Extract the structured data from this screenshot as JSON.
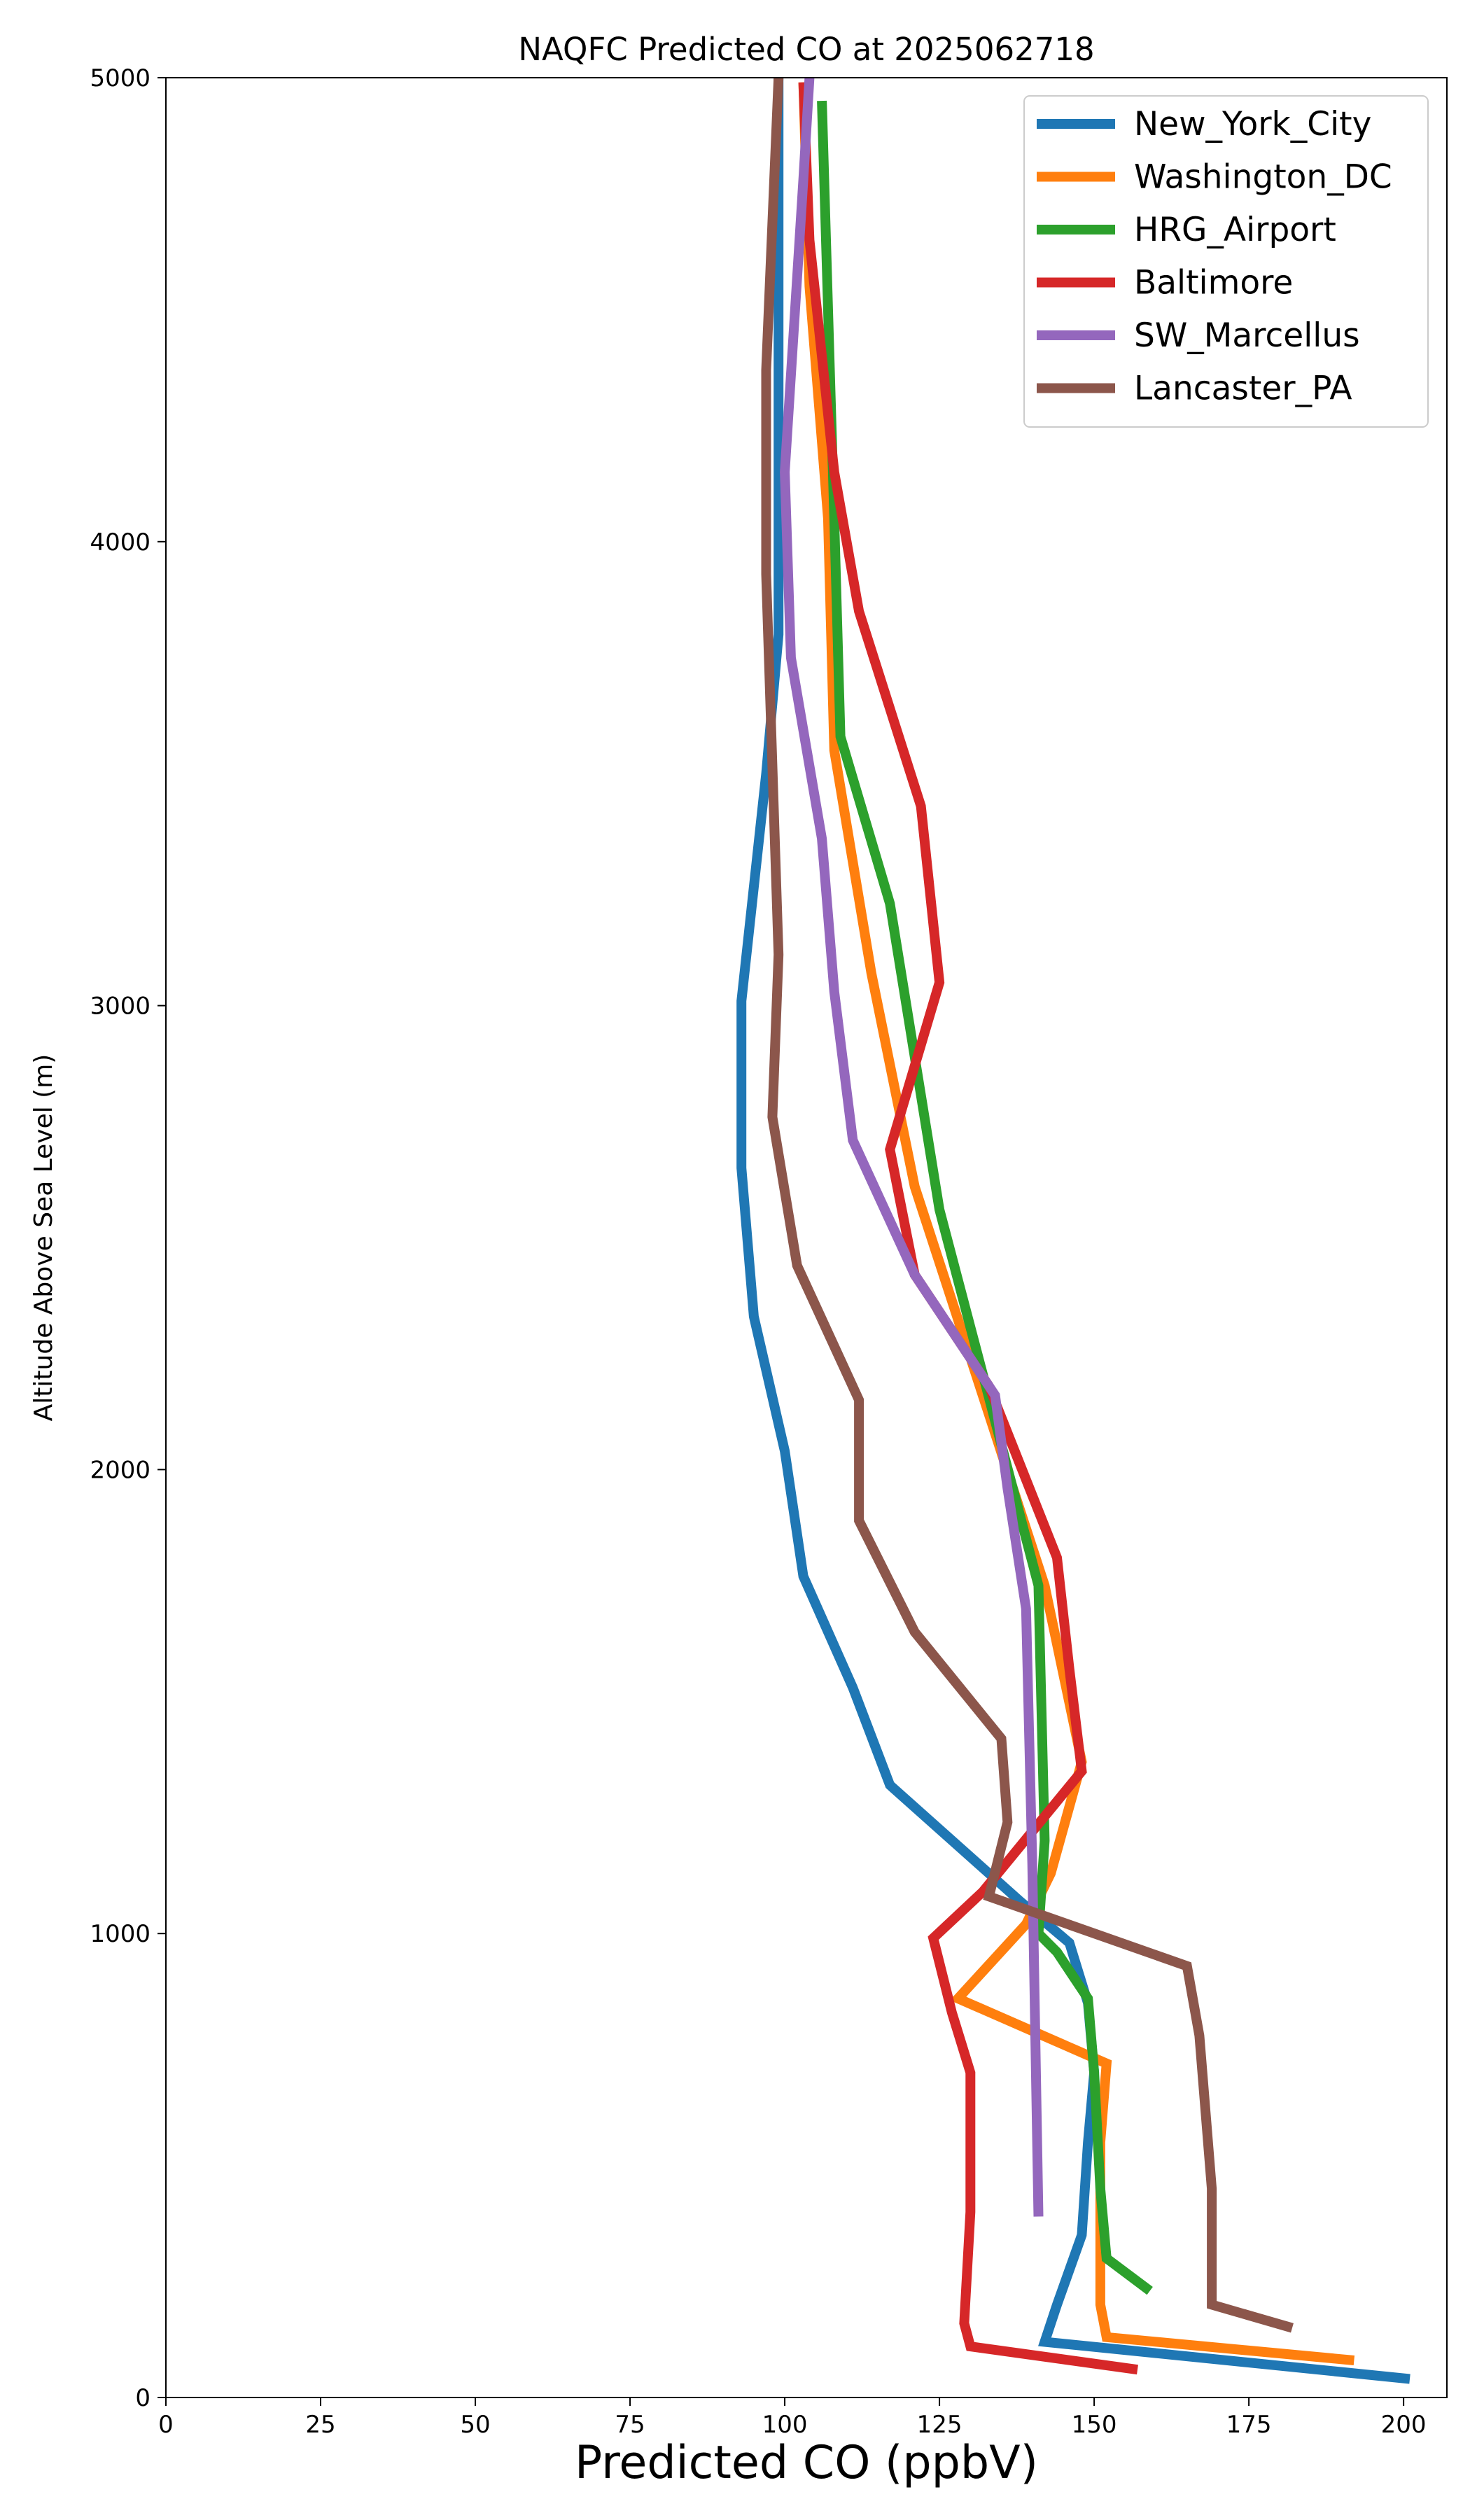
{
  "chart_data": {
    "type": "line",
    "title": "NAQFC Predicted CO at 2025062718",
    "xlabel": "Predicted CO (ppbV)",
    "ylabel": "Altitude Above Sea Level (m)",
    "xlim": [
      0,
      207
    ],
    "ylim": [
      0,
      5000
    ],
    "xticks": [
      "0",
      "25",
      "50",
      "75",
      "100",
      "125",
      "150",
      "175",
      "200"
    ],
    "yticks": [
      "0",
      "1000",
      "2000",
      "3000",
      "4000",
      "5000"
    ],
    "grid": false,
    "legend_position": "top-right",
    "series": [
      {
        "name": "New_York_City",
        "color": "#1f77b4",
        "points": [
          [
            201,
            40
          ],
          [
            142,
            120
          ],
          [
            144,
            200
          ],
          [
            148,
            350
          ],
          [
            149,
            550
          ],
          [
            150,
            700
          ],
          [
            149,
            850
          ],
          [
            146,
            980
          ],
          [
            138,
            1070
          ],
          [
            117,
            1320
          ],
          [
            111,
            1530
          ],
          [
            103,
            1770
          ],
          [
            100,
            2040
          ],
          [
            95,
            2330
          ],
          [
            93,
            2650
          ],
          [
            93,
            3010
          ],
          [
            97,
            3500
          ],
          [
            99,
            3800
          ],
          [
            99,
            4400
          ],
          [
            99,
            5000
          ]
        ]
      },
      {
        "name": "Washington_DC",
        "color": "#ff7f0e",
        "points": [
          [
            192,
            80
          ],
          [
            152,
            130
          ],
          [
            151,
            200
          ],
          [
            151,
            550
          ],
          [
            152,
            720
          ],
          [
            128,
            860
          ],
          [
            139,
            1020
          ],
          [
            143,
            1130
          ],
          [
            148,
            1370
          ],
          [
            142,
            1750
          ],
          [
            121,
            2610
          ],
          [
            114,
            3070
          ],
          [
            108,
            3550
          ],
          [
            107,
            4050
          ],
          [
            104,
            4550
          ],
          [
            103,
            4990
          ]
        ]
      },
      {
        "name": "HRG_Airport",
        "color": "#2ca02c",
        "points": [
          [
            159,
            230
          ],
          [
            152,
            300
          ],
          [
            151,
            450
          ],
          [
            150,
            700
          ],
          [
            149,
            860
          ],
          [
            144,
            960
          ],
          [
            141,
            1000
          ],
          [
            142,
            1200
          ],
          [
            141,
            1750
          ],
          [
            125,
            2560
          ],
          [
            117,
            3220
          ],
          [
            109,
            3580
          ],
          [
            108,
            4050
          ],
          [
            106,
            4950
          ]
        ]
      },
      {
        "name": "Baltimore",
        "color": "#d62728",
        "points": [
          [
            157,
            60
          ],
          [
            130,
            110
          ],
          [
            129,
            160
          ],
          [
            130,
            400
          ],
          [
            130,
            580
          ],
          [
            130,
            700
          ],
          [
            127,
            830
          ],
          [
            124,
            990
          ],
          [
            132,
            1090
          ],
          [
            148,
            1350
          ],
          [
            146,
            1570
          ],
          [
            144,
            1810
          ],
          [
            133,
            2180
          ],
          [
            121,
            2420
          ],
          [
            117,
            2690
          ],
          [
            125,
            3050
          ],
          [
            122,
            3430
          ],
          [
            112,
            3850
          ],
          [
            108,
            4150
          ],
          [
            104,
            4650
          ],
          [
            103,
            4990
          ]
        ]
      },
      {
        "name": "SW_Marcellus",
        "color": "#9467bd",
        "points": [
          [
            141,
            390
          ],
          [
            140,
            1150
          ],
          [
            139,
            1700
          ],
          [
            136,
            1960
          ],
          [
            134,
            2160
          ],
          [
            121,
            2420
          ],
          [
            111,
            2710
          ],
          [
            108,
            3030
          ],
          [
            106,
            3360
          ],
          [
            101,
            3750
          ],
          [
            100,
            4150
          ],
          [
            103,
            4780
          ],
          [
            104,
            5000
          ]
        ]
      },
      {
        "name": "Lancaster_PA",
        "color": "#8c564b",
        "points": [
          [
            182,
            150
          ],
          [
            169,
            200
          ],
          [
            169,
            280
          ],
          [
            169,
            450
          ],
          [
            167,
            780
          ],
          [
            165,
            930
          ],
          [
            133,
            1080
          ],
          [
            136,
            1240
          ],
          [
            135,
            1420
          ],
          [
            121,
            1650
          ],
          [
            112,
            1890
          ],
          [
            112,
            2150
          ],
          [
            102,
            2440
          ],
          [
            98,
            2760
          ],
          [
            99,
            3110
          ],
          [
            97,
            3930
          ],
          [
            97,
            4370
          ],
          [
            99,
            5000
          ]
        ]
      }
    ]
  }
}
